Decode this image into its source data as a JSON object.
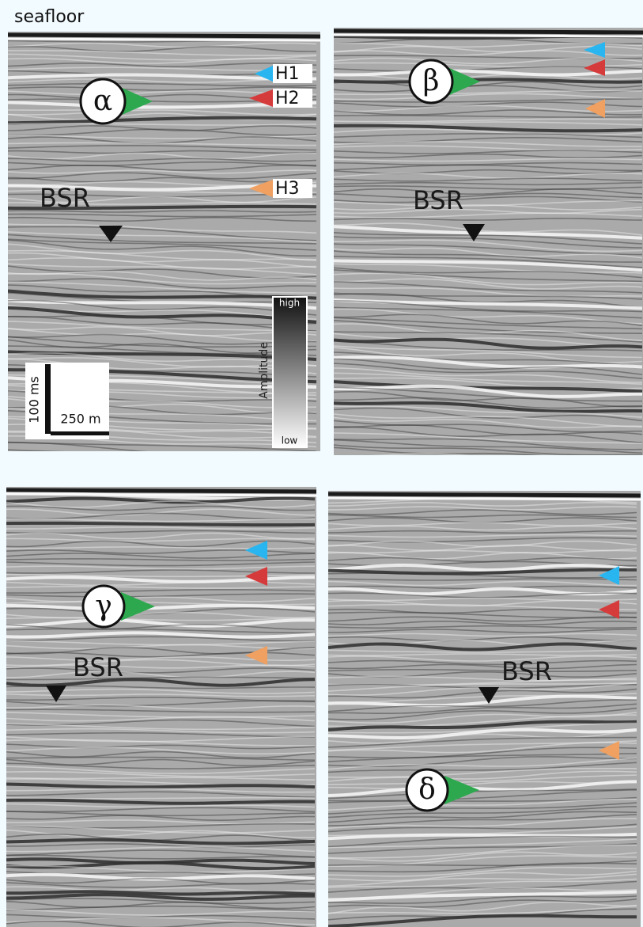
{
  "header_label": "seafloor",
  "panels": [
    {
      "label": "α",
      "bsr": "BSR",
      "horizons": [
        "H1",
        "H2",
        "H3"
      ]
    },
    {
      "label": "β",
      "bsr": "BSR"
    },
    {
      "label": "γ",
      "bsr": "BSR"
    },
    {
      "label": "δ",
      "bsr": "BSR"
    }
  ],
  "scale_bar": {
    "vertical": "100 ms",
    "horizontal": "250 m"
  },
  "colorbar": {
    "title": "Amplitude",
    "high": "high",
    "low": "low"
  }
}
